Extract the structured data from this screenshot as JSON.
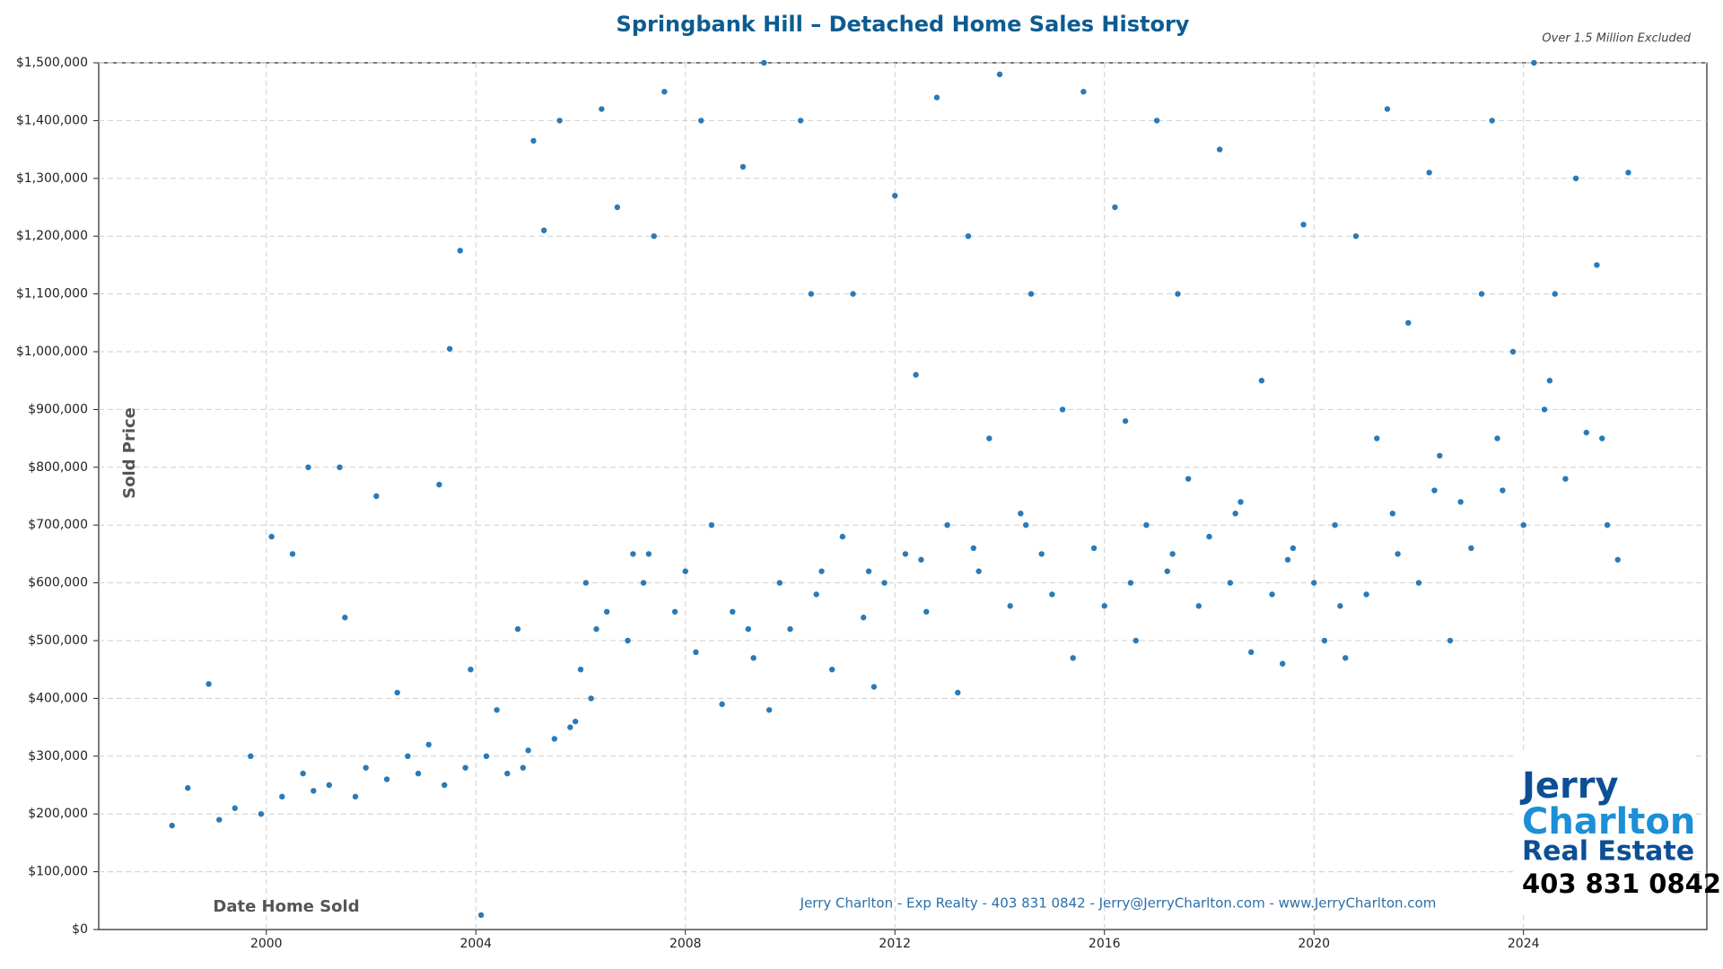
{
  "chart_data": {
    "type": "scatter",
    "title": "Springbank Hill – Detached Home Sales History",
    "subtitle": "Over 1.5 Million Excluded",
    "y_label": "Sold Price",
    "x_label": "Date Home Sold",
    "footer": "Jerry Charlton - Exp Realty - 403 831 0842 - Jerry@JerryCharlton.com - www.JerryCharlton.com",
    "logo": {
      "line1": "Jerry",
      "line2": "Charlton",
      "line3": "Real Estate",
      "phone": "403 831 0842"
    },
    "color": "#2a7ab8",
    "grid": true,
    "xlim": [
      1996.8,
      2027.5
    ],
    "xticks": [
      2000,
      2004,
      2008,
      2012,
      2016,
      2020,
      2024
    ],
    "ylim": [
      0,
      1500000
    ],
    "yticks": [
      {
        "value": 0,
        "label": "$0"
      },
      {
        "value": 100000,
        "label": "$100,000"
      },
      {
        "value": 200000,
        "label": "$200,000"
      },
      {
        "value": 300000,
        "label": "$300,000"
      },
      {
        "value": 400000,
        "label": "$400,000"
      },
      {
        "value": 500000,
        "label": "$500,000"
      },
      {
        "value": 600000,
        "label": "$600,000"
      },
      {
        "value": 700000,
        "label": "$700,000"
      },
      {
        "value": 800000,
        "label": "$800,000"
      },
      {
        "value": 900000,
        "label": "$900,000"
      },
      {
        "value": 1000000,
        "label": "$1,000,000"
      },
      {
        "value": 1100000,
        "label": "$1,100,000"
      },
      {
        "value": 1200000,
        "label": "$1,200,000"
      },
      {
        "value": 1300000,
        "label": "$1,300,000"
      },
      {
        "value": 1400000,
        "label": "$1,400,000"
      },
      {
        "value": 1500000,
        "label": "$1,500,000"
      }
    ],
    "x": [
      1998.2,
      1998.5,
      1998.9,
      1999.1,
      1999.4,
      1999.7,
      1999.9,
      2000.1,
      2000.3,
      2000.5,
      2000.7,
      2000.8,
      2000.9,
      2001.2,
      2001.4,
      2001.5,
      2001.7,
      2001.9,
      2002.1,
      2002.3,
      2002.5,
      2002.7,
      2002.9,
      2003.1,
      2003.3,
      2003.4,
      2003.5,
      2003.7,
      2003.8,
      2003.9,
      2004.1,
      2004.2,
      2004.4,
      2004.6,
      2004.8,
      2005.0,
      2005.1,
      2005.3,
      2005.5,
      2005.6,
      2005.8,
      2006.0,
      2006.1,
      2006.2,
      2006.4,
      2006.5,
      2006.7,
      2006.9,
      2007.0,
      2007.2,
      2007.4,
      2007.6,
      2007.8,
      2008.0,
      2008.2,
      2008.3,
      2008.5,
      2008.7,
      2008.9,
      2009.1,
      2009.3,
      2009.5,
      2009.6,
      2009.8,
      2010.0,
      2010.2,
      2010.4,
      2010.6,
      2010.8,
      2011.0,
      2011.2,
      2011.4,
      2011.6,
      2011.8,
      2012.0,
      2012.2,
      2012.4,
      2012.6,
      2012.8,
      2013.0,
      2013.2,
      2013.4,
      2013.6,
      2013.8,
      2014.0,
      2014.2,
      2014.4,
      2014.6,
      2014.8,
      2015.0,
      2015.2,
      2015.4,
      2015.6,
      2015.8,
      2016.0,
      2016.2,
      2016.4,
      2016.6,
      2016.8,
      2017.0,
      2017.2,
      2017.4,
      2017.6,
      2017.8,
      2018.0,
      2018.2,
      2018.4,
      2018.6,
      2018.8,
      2019.0,
      2019.2,
      2019.4,
      2019.6,
      2019.8,
      2020.0,
      2020.2,
      2020.4,
      2020.6,
      2020.8,
      2021.0,
      2021.2,
      2021.4,
      2021.6,
      2021.8,
      2022.0,
      2022.2,
      2022.4,
      2022.6,
      2022.8,
      2023.0,
      2023.2,
      2023.4,
      2023.6,
      2023.8,
      2024.0,
      2024.2,
      2024.4,
      2024.6,
      2024.8,
      2025.0,
      2025.2,
      2025.4,
      2025.6,
      2025.8,
      2026.0,
      2007.3,
      2009.2,
      2011.5,
      2012.5,
      2013.5,
      2017.3,
      2019.5,
      2021.5,
      2022.3,
      2005.9,
      2004.9,
      2006.3,
      2010.5,
      2014.5,
      2016.5,
      2018.5,
      2020.5,
      2023.5,
      2024.5,
      2025.5
    ],
    "values": [
      180000,
      245000,
      425000,
      190000,
      210000,
      300000,
      200000,
      680000,
      230000,
      650000,
      270000,
      800000,
      240000,
      250000,
      800000,
      540000,
      230000,
      280000,
      750000,
      260000,
      410000,
      300000,
      270000,
      320000,
      770000,
      250000,
      1005000,
      1175000,
      280000,
      450000,
      25000,
      300000,
      380000,
      270000,
      520000,
      310000,
      1365000,
      1210000,
      330000,
      1400000,
      350000,
      450000,
      600000,
      400000,
      1420000,
      550000,
      1250000,
      500000,
      650000,
      600000,
      1200000,
      1450000,
      550000,
      620000,
      480000,
      1400000,
      700000,
      390000,
      550000,
      1320000,
      470000,
      1500000,
      380000,
      600000,
      520000,
      1400000,
      1100000,
      620000,
      450000,
      680000,
      1100000,
      540000,
      420000,
      600000,
      1270000,
      650000,
      960000,
      550000,
      1440000,
      700000,
      410000,
      1200000,
      620000,
      850000,
      1480000,
      560000,
      720000,
      1100000,
      650000,
      580000,
      900000,
      470000,
      1450000,
      660000,
      560000,
      1250000,
      880000,
      500000,
      700000,
      1400000,
      620000,
      1100000,
      780000,
      560000,
      680000,
      1350000,
      600000,
      740000,
      480000,
      950000,
      580000,
      460000,
      660000,
      1220000,
      600000,
      500000,
      700000,
      470000,
      1200000,
      580000,
      850000,
      1420000,
      650000,
      1050000,
      600000,
      1310000,
      820000,
      500000,
      740000,
      660000,
      1100000,
      1400000,
      760000,
      1000000,
      700000,
      1500000,
      900000,
      1100000,
      780000,
      1300000,
      860000,
      1150000,
      700000,
      640000,
      1310000,
      650000,
      520000,
      620000,
      640000,
      660000,
      650000,
      640000,
      720000,
      760000,
      360000,
      280000,
      520000,
      580000,
      700000,
      600000,
      720000,
      560000,
      850000,
      950000,
      850000
    ]
  }
}
